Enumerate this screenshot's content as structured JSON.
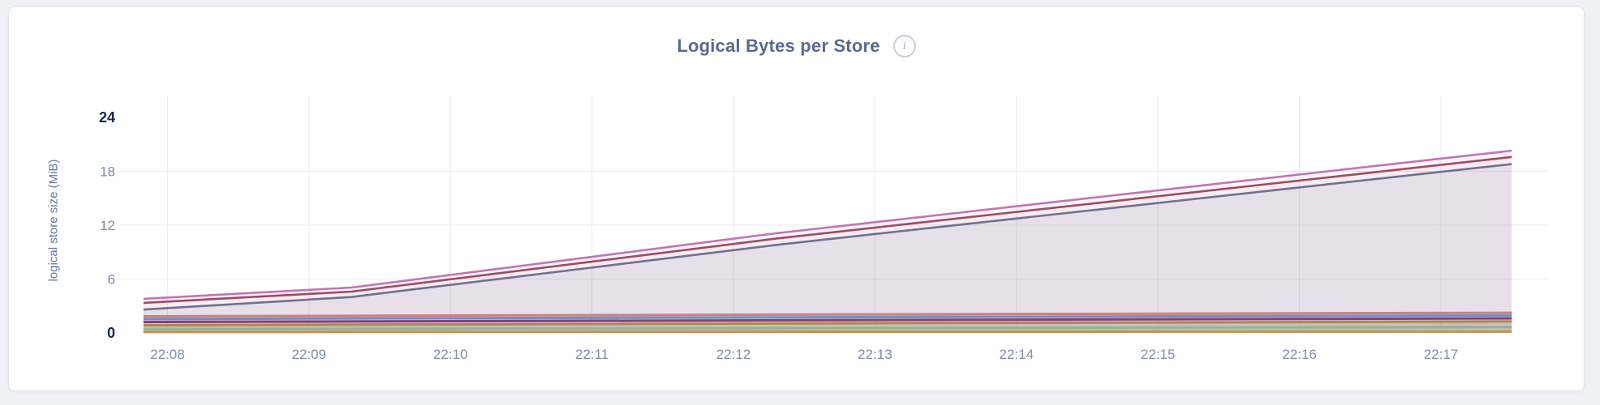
{
  "header": {
    "title": "Logical Bytes per Store",
    "info_icon": {
      "name": "info-icon",
      "glyph": "i"
    }
  },
  "colors": {
    "page_background": "#eff1f6",
    "panel_background": "#ffffff",
    "panel_border": "#e2e5ec",
    "title_text": "#5a6a8e",
    "axis_tick_text": "#7e8da8",
    "axis_tick_text_bold": "#142949",
    "gridline": "#e9eaee"
  },
  "chart_data": {
    "type": "area",
    "title": "Logical Bytes per Store",
    "xlabel": "",
    "ylabel": "logical store size (MiB)",
    "ylim": [
      0,
      24
    ],
    "y_ticks": [
      0,
      6,
      12,
      18,
      24
    ],
    "y_ticks_bold": [
      0,
      24
    ],
    "x_ticks": [
      "22:08",
      "22:09",
      "22:10",
      "22:11",
      "22:12",
      "22:13",
      "22:14",
      "22:15",
      "22:16",
      "22:17"
    ],
    "x_unit": "minutes from first tick",
    "x_range": [
      -0.17,
      9.5
    ],
    "grid": true,
    "legend": "none",
    "series": [
      {
        "id": "store-a",
        "color": "#c473b5",
        "fill_opacity": 0.07,
        "line_width": 2.6,
        "points": [
          [
            -0.17,
            3.8
          ],
          [
            1.3,
            5.05
          ],
          [
            4.3,
            11.1
          ],
          [
            9.5,
            20.3
          ]
        ]
      },
      {
        "id": "store-b",
        "color": "#a04a62",
        "fill_opacity": 0.05,
        "line_width": 2.6,
        "points": [
          [
            -0.17,
            3.35
          ],
          [
            1.3,
            4.6
          ],
          [
            4.3,
            10.5
          ],
          [
            9.5,
            19.6
          ]
        ]
      },
      {
        "id": "store-c",
        "color": "#6f7190",
        "fill_opacity": 0.1,
        "line_width": 2.6,
        "points": [
          [
            -0.17,
            2.6
          ],
          [
            1.3,
            4.0
          ],
          [
            4.3,
            9.8
          ],
          [
            9.5,
            18.8
          ]
        ]
      },
      {
        "id": "store-d",
        "color": "#cf7f7f",
        "fill_opacity": 0.09,
        "line_width": 3,
        "points": [
          [
            -0.17,
            1.85
          ],
          [
            9.5,
            2.25
          ]
        ]
      },
      {
        "id": "store-e",
        "color": "#6e8fc3",
        "fill_opacity": 0.09,
        "line_width": 3,
        "points": [
          [
            -0.17,
            1.55
          ],
          [
            9.5,
            1.95
          ]
        ]
      },
      {
        "id": "store-f",
        "color": "#8c3d73",
        "fill_opacity": 0.09,
        "line_width": 3,
        "points": [
          [
            -0.17,
            1.22
          ],
          [
            9.5,
            1.62
          ]
        ]
      },
      {
        "id": "store-g",
        "color": "#ad894d",
        "fill_opacity": 0.1,
        "line_width": 3,
        "points": [
          [
            -0.17,
            0.85
          ],
          [
            9.5,
            1.27
          ]
        ]
      },
      {
        "id": "store-h",
        "color": "#8ab98e",
        "fill_opacity": 0.1,
        "line_width": 3,
        "points": [
          [
            -0.17,
            0.42
          ],
          [
            9.5,
            0.66
          ]
        ]
      },
      {
        "id": "store-i",
        "color": "#c29355",
        "fill_opacity": 0.1,
        "line_width": 3,
        "points": [
          [
            -0.17,
            0.1
          ],
          [
            9.5,
            0.16
          ]
        ]
      }
    ]
  }
}
